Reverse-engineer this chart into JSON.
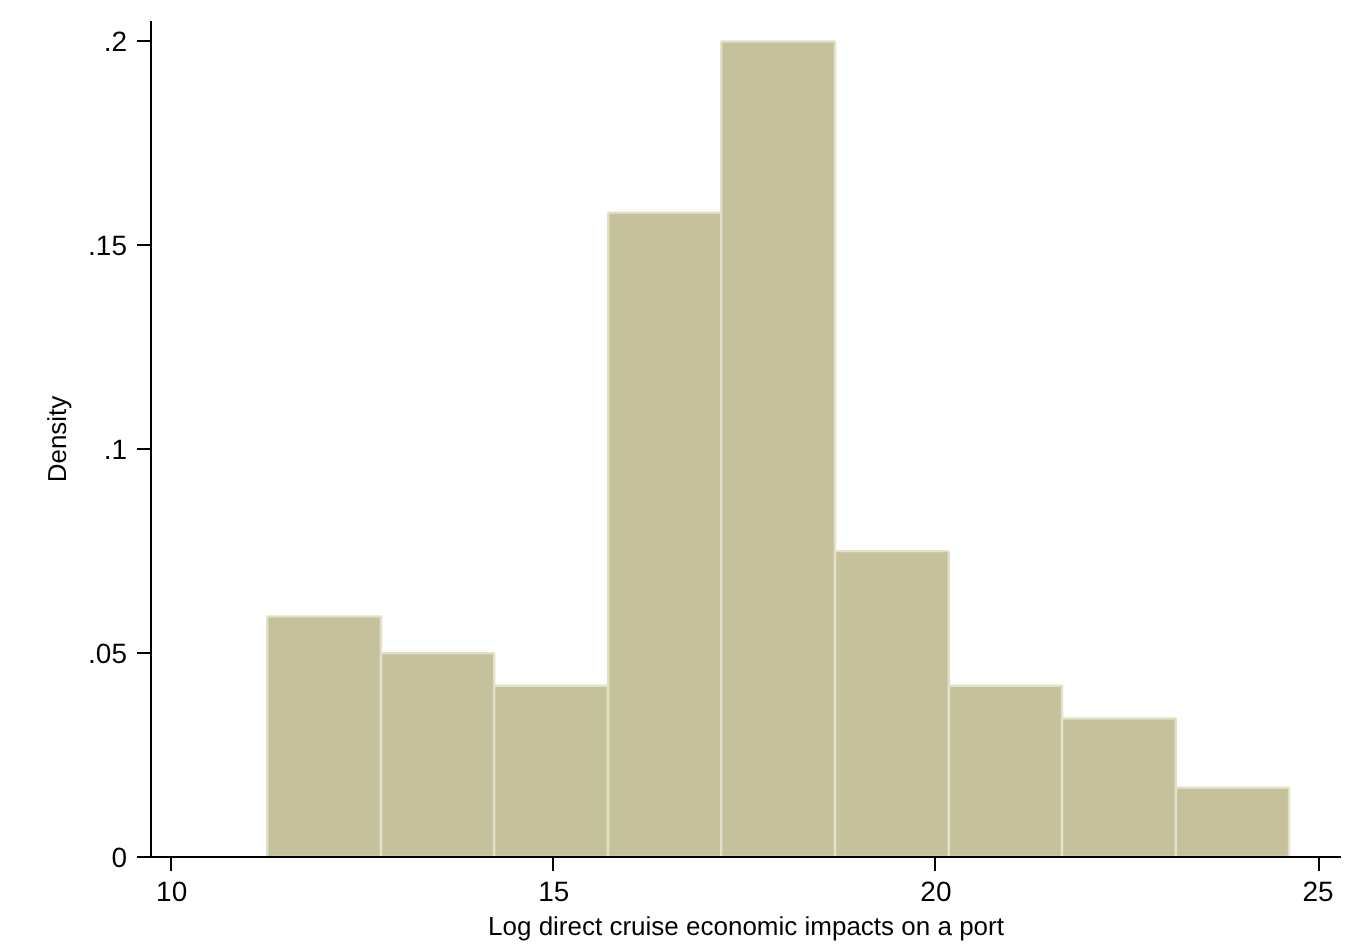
{
  "chart_data": {
    "type": "histogram",
    "xlabel": "Log direct cruise economic impacts on a port",
    "ylabel": "Density",
    "bins": [
      11.25,
      12.74,
      14.22,
      15.71,
      17.19,
      18.68,
      20.17,
      21.65,
      23.14,
      24.62
    ],
    "values": [
      0.059,
      0.05,
      0.042,
      0.158,
      0.2,
      0.075,
      0.042,
      0.034,
      0.017
    ],
    "color": "#c4c19b",
    "xlim": [
      9.73,
      25.3
    ],
    "xticks": [
      10,
      15,
      20,
      25
    ],
    "ylim": [
      0,
      0.205
    ],
    "yticks": [
      {
        "value": 0,
        "label": "0"
      },
      {
        "value": 0.05,
        "label": ".05"
      },
      {
        "value": 0.1,
        "label": ".1"
      },
      {
        "value": 0.15,
        "label": ".15"
      },
      {
        "value": 0.2,
        "label": ".2"
      }
    ],
    "grid": false
  }
}
